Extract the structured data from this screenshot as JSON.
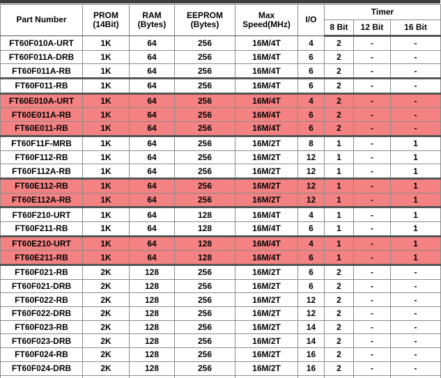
{
  "colors": {
    "highlight_row": "#F58282",
    "grid_line": "#8a8a8a",
    "group_separator": "#555555",
    "top_bar": "#3f3f3f"
  },
  "header": {
    "part_number": "Part Number",
    "prom_l1": "PROM",
    "prom_l2": "(14Bit)",
    "ram_l1": "RAM",
    "ram_l2": "(Bytes)",
    "eeprom_l1": "EEPROM",
    "eeprom_l2": "(Bytes)",
    "speed_l1": "Max",
    "speed_l2": "Speed(MHz)",
    "io": "I/O",
    "timer": "Timer",
    "timer_8": "8 Bit",
    "timer_12": "12 Bit",
    "timer_16": "16 Bit"
  },
  "rows": [
    {
      "part": "FT60F010A-URT",
      "prom": "1K",
      "ram": "64",
      "eeprom": "256",
      "speed": "16M/4T",
      "io": "4",
      "t8": "2",
      "t12": "-",
      "t16": "-",
      "highlight": false,
      "thick_top": false
    },
    {
      "part": "FT60F011A-DRB",
      "prom": "1K",
      "ram": "64",
      "eeprom": "256",
      "speed": "16M/4T",
      "io": "6",
      "t8": "2",
      "t12": "-",
      "t16": "-",
      "highlight": false,
      "thick_top": false
    },
    {
      "part": "FT60F011A-RB",
      "prom": "1K",
      "ram": "64",
      "eeprom": "256",
      "speed": "16M/4T",
      "io": "6",
      "t8": "2",
      "t12": "-",
      "t16": "-",
      "highlight": false,
      "thick_top": false
    },
    {
      "part": "FT60F011-RB",
      "prom": "1K",
      "ram": "64",
      "eeprom": "256",
      "speed": "16M/4T",
      "io": "6",
      "t8": "2",
      "t12": "-",
      "t16": "-",
      "highlight": false,
      "thick_top": true
    },
    {
      "part": "FT60E010A-URT",
      "prom": "1K",
      "ram": "64",
      "eeprom": "256",
      "speed": "16M/4T",
      "io": "4",
      "t8": "2",
      "t12": "-",
      "t16": "-",
      "highlight": true,
      "thick_top": true
    },
    {
      "part": "FT60E011A-RB",
      "prom": "1K",
      "ram": "64",
      "eeprom": "256",
      "speed": "16M/4T",
      "io": "6",
      "t8": "2",
      "t12": "-",
      "t16": "-",
      "highlight": true,
      "thick_top": false
    },
    {
      "part": "FT60E011-RB",
      "prom": "1K",
      "ram": "64",
      "eeprom": "256",
      "speed": "16M/4T",
      "io": "6",
      "t8": "2",
      "t12": "-",
      "t16": "-",
      "highlight": true,
      "thick_top": false
    },
    {
      "part": "FT60F11F-MRB",
      "prom": "1K",
      "ram": "64",
      "eeprom": "256",
      "speed": "16M/2T",
      "io": "8",
      "t8": "1",
      "t12": "-",
      "t16": "1",
      "highlight": false,
      "thick_top": true
    },
    {
      "part": "FT60F112-RB",
      "prom": "1K",
      "ram": "64",
      "eeprom": "256",
      "speed": "16M/2T",
      "io": "12",
      "t8": "1",
      "t12": "-",
      "t16": "1",
      "highlight": false,
      "thick_top": false
    },
    {
      "part": "FT60F112A-RB",
      "prom": "1K",
      "ram": "64",
      "eeprom": "256",
      "speed": "16M/2T",
      "io": "12",
      "t8": "1",
      "t12": "-",
      "t16": "1",
      "highlight": false,
      "thick_top": false
    },
    {
      "part": "FT60E112-RB",
      "prom": "1K",
      "ram": "64",
      "eeprom": "256",
      "speed": "16M/2T",
      "io": "12",
      "t8": "1",
      "t12": "-",
      "t16": "1",
      "highlight": true,
      "thick_top": true
    },
    {
      "part": "FT60E112A-RB",
      "prom": "1K",
      "ram": "64",
      "eeprom": "256",
      "speed": "16M/2T",
      "io": "12",
      "t8": "1",
      "t12": "-",
      "t16": "1",
      "highlight": true,
      "thick_top": false
    },
    {
      "part": "FT60F210-URT",
      "prom": "1K",
      "ram": "64",
      "eeprom": "128",
      "speed": "16M/4T",
      "io": "4",
      "t8": "1",
      "t12": "-",
      "t16": "1",
      "highlight": false,
      "thick_top": true
    },
    {
      "part": "FT60F211-RB",
      "prom": "1K",
      "ram": "64",
      "eeprom": "128",
      "speed": "16M/4T",
      "io": "6",
      "t8": "1",
      "t12": "-",
      "t16": "1",
      "highlight": false,
      "thick_top": false
    },
    {
      "part": "FT60E210-URT",
      "prom": "1K",
      "ram": "64",
      "eeprom": "128",
      "speed": "16M/4T",
      "io": "4",
      "t8": "1",
      "t12": "-",
      "t16": "1",
      "highlight": true,
      "thick_top": true
    },
    {
      "part": "FT60E211-RB",
      "prom": "1K",
      "ram": "64",
      "eeprom": "128",
      "speed": "16M/4T",
      "io": "6",
      "t8": "1",
      "t12": "-",
      "t16": "1",
      "highlight": true,
      "thick_top": false
    },
    {
      "part": "FT60F021-RB",
      "prom": "2K",
      "ram": "128",
      "eeprom": "256",
      "speed": "16M/2T",
      "io": "6",
      "t8": "2",
      "t12": "-",
      "t16": "-",
      "highlight": false,
      "thick_top": true
    },
    {
      "part": "FT60F021-DRB",
      "prom": "2K",
      "ram": "128",
      "eeprom": "256",
      "speed": "16M/2T",
      "io": "6",
      "t8": "2",
      "t12": "-",
      "t16": "-",
      "highlight": false,
      "thick_top": false
    },
    {
      "part": "FT60F022-RB",
      "prom": "2K",
      "ram": "128",
      "eeprom": "256",
      "speed": "16M/2T",
      "io": "12",
      "t8": "2",
      "t12": "-",
      "t16": "-",
      "highlight": false,
      "thick_top": false
    },
    {
      "part": "FT60F022-DRB",
      "prom": "2K",
      "ram": "128",
      "eeprom": "256",
      "speed": "16M/2T",
      "io": "12",
      "t8": "2",
      "t12": "-",
      "t16": "-",
      "highlight": false,
      "thick_top": false
    },
    {
      "part": "FT60F023-RB",
      "prom": "2K",
      "ram": "128",
      "eeprom": "256",
      "speed": "16M/2T",
      "io": "14",
      "t8": "2",
      "t12": "-",
      "t16": "-",
      "highlight": false,
      "thick_top": false
    },
    {
      "part": "FT60F023-DRB",
      "prom": "2K",
      "ram": "128",
      "eeprom": "256",
      "speed": "16M/2T",
      "io": "14",
      "t8": "2",
      "t12": "-",
      "t16": "-",
      "highlight": false,
      "thick_top": false
    },
    {
      "part": "FT60F024-RB",
      "prom": "2K",
      "ram": "128",
      "eeprom": "256",
      "speed": "16M/2T",
      "io": "16",
      "t8": "2",
      "t12": "-",
      "t16": "-",
      "highlight": false,
      "thick_top": false
    },
    {
      "part": "FT60F024-DRB",
      "prom": "2K",
      "ram": "128",
      "eeprom": "256",
      "speed": "16M/2T",
      "io": "16",
      "t8": "2",
      "t12": "-",
      "t16": "-",
      "highlight": false,
      "thick_top": false
    }
  ]
}
